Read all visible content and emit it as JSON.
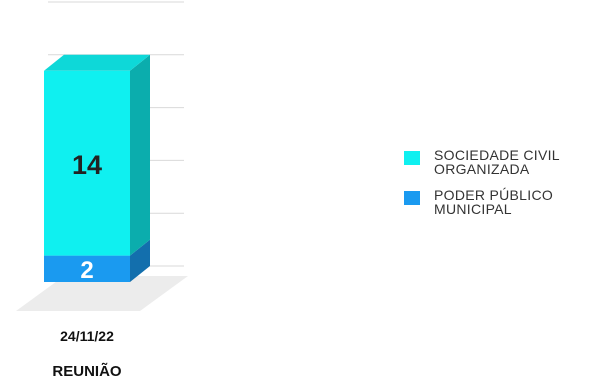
{
  "chart_data": {
    "type": "bar",
    "stacked": true,
    "style": "3d",
    "categories": [
      "24/11/22"
    ],
    "xlabel": "REUNIÃO",
    "ylim": [
      0,
      20
    ],
    "grid": true,
    "legend_position": "right",
    "series": [
      {
        "name": "PODER PÚBLICO MUNICIPAL",
        "values": [
          2
        ],
        "color": "#1a9af0"
      },
      {
        "name": "SOCIEDADE CIVIL ORGANIZADA",
        "values": [
          14
        ],
        "color": "#0ff0f0"
      }
    ]
  },
  "legend": {
    "items": [
      {
        "line1": "SOCIEDADE CIVIL",
        "line2": "ORGANIZADA",
        "color": "#0ff0f0"
      },
      {
        "line1": "PODER PÚBLICO",
        "line2": "MUNICIPAL",
        "color": "#1a9af0"
      }
    ]
  }
}
